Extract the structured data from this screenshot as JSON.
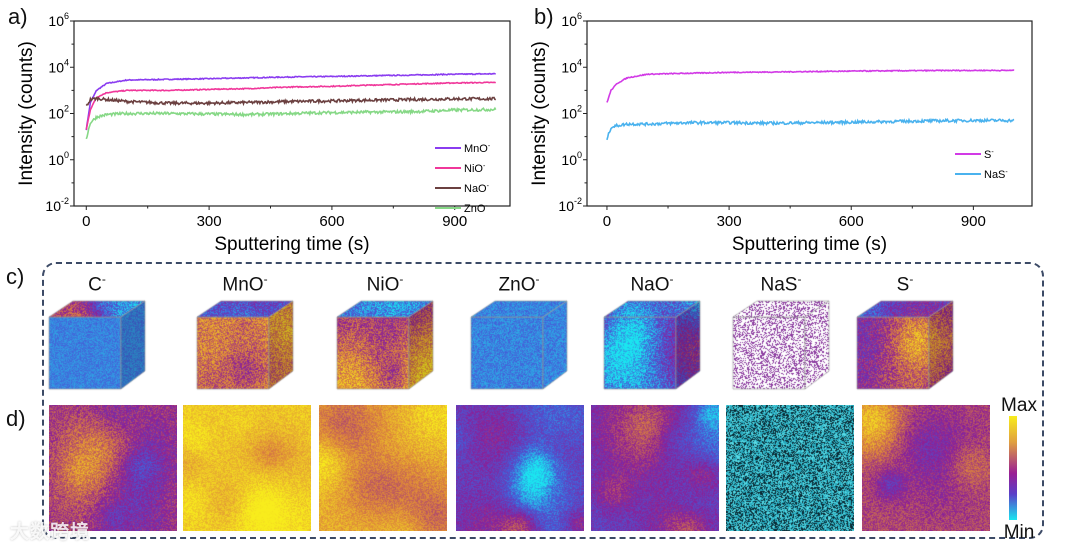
{
  "chart_data": [
    {
      "type": "line",
      "panel_label": "a)",
      "xlabel": "Sputtering time (s)",
      "ylabel": "Intensity (counts)",
      "yscale": "log",
      "xlim": [
        -30,
        1035
      ],
      "ylim": [
        0.01,
        1000000
      ],
      "xticks": [
        0,
        300,
        600,
        900
      ],
      "yticks": [
        {
          "base": "10",
          "exp": "-2"
        },
        {
          "base": "10",
          "exp": "0"
        },
        {
          "base": "10",
          "exp": "2"
        },
        {
          "base": "10",
          "exp": "4"
        },
        {
          "base": "10",
          "exp": "6"
        }
      ],
      "ytick_values": [
        0.01,
        1,
        100,
        10000,
        1000000
      ],
      "legend_position": "bottom-right",
      "x": [
        0,
        10,
        25,
        50,
        100,
        200,
        300,
        400,
        500,
        600,
        700,
        800,
        900,
        1000
      ],
      "series": [
        {
          "name": "MnO",
          "sup": "-",
          "color": "#8a3cf0",
          "values": [
            20,
            300,
            1000,
            2000,
            2800,
            3000,
            3200,
            3500,
            3800,
            4000,
            4300,
            4600,
            5000,
            5200
          ]
        },
        {
          "name": "NiO",
          "sup": "-",
          "color": "#f0379a",
          "values": [
            20,
            150,
            500,
            800,
            1000,
            1000,
            1100,
            1200,
            1400,
            1500,
            1700,
            1900,
            2100,
            2200
          ]
        },
        {
          "name": "NaO",
          "sup": "-",
          "color": "#6b4040",
          "values": [
            200,
            400,
            450,
            400,
            330,
            280,
            280,
            300,
            330,
            350,
            380,
            400,
            430,
            430
          ]
        },
        {
          "name": "ZnO",
          "sup": "-",
          "color": "#86d886",
          "values": [
            8,
            40,
            70,
            90,
            100,
            100,
            95,
            90,
            100,
            110,
            115,
            120,
            140,
            150
          ]
        }
      ]
    },
    {
      "type": "line",
      "panel_label": "b)",
      "xlabel": "Sputtering time (s)",
      "ylabel": "Intensity (counts)",
      "yscale": "log",
      "xlim": [
        -49,
        1044
      ],
      "ylim": [
        0.01,
        1000000
      ],
      "xticks": [
        0,
        300,
        600,
        900
      ],
      "yticks": [
        {
          "base": "10",
          "exp": "-2"
        },
        {
          "base": "10",
          "exp": "0"
        },
        {
          "base": "10",
          "exp": "2"
        },
        {
          "base": "10",
          "exp": "4"
        },
        {
          "base": "10",
          "exp": "6"
        }
      ],
      "ytick_values": [
        0.01,
        1,
        100,
        10000,
        1000000
      ],
      "legend_position": "right",
      "x": [
        0,
        10,
        25,
        50,
        100,
        200,
        300,
        400,
        500,
        600,
        700,
        800,
        900,
        1000
      ],
      "series": [
        {
          "name": "S",
          "sup": "-",
          "color": "#d23ae6",
          "values": [
            300,
            1000,
            2000,
            3500,
            5000,
            5500,
            6000,
            6200,
            6500,
            6800,
            7000,
            7200,
            7300,
            7300
          ]
        },
        {
          "name": "NaS",
          "sup": "-",
          "color": "#4ab2ee",
          "values": [
            8,
            25,
            30,
            35,
            35,
            40,
            40,
            38,
            40,
            42,
            45,
            48,
            50,
            50
          ]
        }
      ]
    }
  ],
  "panel_c": {
    "label": "c)",
    "species": [
      {
        "name": "C",
        "sup": "-"
      },
      {
        "name": "MnO",
        "sup": "-"
      },
      {
        "name": "NiO",
        "sup": "-"
      },
      {
        "name": "ZnO",
        "sup": "-"
      },
      {
        "name": "NaO",
        "sup": "-"
      },
      {
        "name": "NaS",
        "sup": "-"
      },
      {
        "name": "S",
        "sup": "-"
      }
    ]
  },
  "panel_d": {
    "label": "d)",
    "colorbar": {
      "max_label": "Max",
      "min_label": "Min",
      "colors": [
        "#f8ec1c",
        "#e0a040",
        "#9a1f94",
        "#5a3fc8",
        "#1ae6f0"
      ]
    }
  },
  "watermark": "大数跨境"
}
